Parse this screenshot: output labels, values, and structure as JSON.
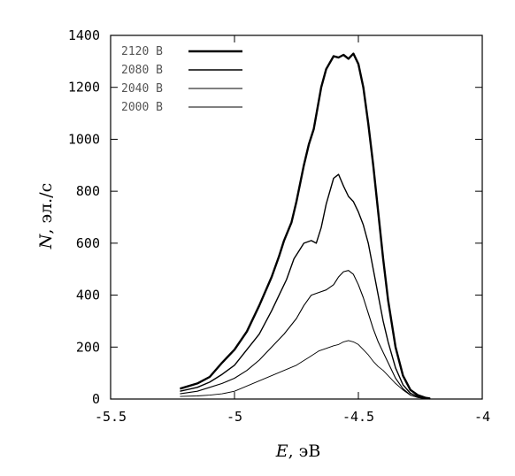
{
  "chart_data": {
    "type": "line",
    "xlabel_var": "E",
    "xlabel_unit": ", эВ",
    "ylabel_var": "N",
    "ylabel_unit": ", эл./с",
    "xlim": [
      -5.5,
      -4
    ],
    "ylim": [
      0,
      1400
    ],
    "xticks": [
      -5.5,
      -5,
      -4.5,
      -4
    ],
    "xtick_labels": [
      "-5.5",
      "-5",
      "-4.5",
      "-4"
    ],
    "yticks": [
      0,
      200,
      400,
      600,
      800,
      1000,
      1200,
      1400
    ],
    "ytick_labels": [
      "0",
      "200",
      "400",
      "600",
      "800",
      "1000",
      "1200",
      "1400"
    ],
    "grid": false,
    "legend_position": "top-left",
    "series": [
      {
        "name": "2120 В",
        "stroke_width": 2.4,
        "x": [
          -5.22,
          -5.15,
          -5.1,
          -5.05,
          -5.0,
          -4.95,
          -4.9,
          -4.85,
          -4.82,
          -4.8,
          -4.77,
          -4.75,
          -4.72,
          -4.7,
          -4.68,
          -4.65,
          -4.63,
          -4.6,
          -4.58,
          -4.56,
          -4.54,
          -4.52,
          -4.5,
          -4.48,
          -4.46,
          -4.44,
          -4.42,
          -4.4,
          -4.38,
          -4.35,
          -4.32,
          -4.29,
          -4.26,
          -4.23,
          -4.21
        ],
        "y": [
          40,
          60,
          85,
          140,
          190,
          260,
          360,
          470,
          550,
          610,
          680,
          760,
          900,
          980,
          1040,
          1200,
          1270,
          1320,
          1315,
          1325,
          1310,
          1330,
          1290,
          1200,
          1060,
          900,
          720,
          540,
          380,
          200,
          90,
          35,
          15,
          5,
          2
        ]
      },
      {
        "name": "2080 В",
        "stroke_width": 1.4,
        "x": [
          -5.22,
          -5.15,
          -5.1,
          -5.05,
          -5.0,
          -4.95,
          -4.9,
          -4.85,
          -4.82,
          -4.79,
          -4.76,
          -4.74,
          -4.72,
          -4.69,
          -4.67,
          -4.65,
          -4.63,
          -4.6,
          -4.58,
          -4.56,
          -4.54,
          -4.52,
          -4.5,
          -4.48,
          -4.46,
          -4.44,
          -4.42,
          -4.4,
          -4.38,
          -4.35,
          -4.32,
          -4.29,
          -4.26,
          -4.23,
          -4.21
        ],
        "y": [
          30,
          45,
          65,
          95,
          130,
          190,
          250,
          340,
          400,
          460,
          540,
          570,
          600,
          610,
          600,
          660,
          750,
          850,
          865,
          820,
          780,
          760,
          720,
          670,
          600,
          500,
          400,
          300,
          220,
          120,
          55,
          22,
          10,
          4,
          1
        ]
      },
      {
        "name": "2040 В",
        "stroke_width": 1.1,
        "x": [
          -5.22,
          -5.15,
          -5.1,
          -5.05,
          -5.0,
          -4.95,
          -4.9,
          -4.85,
          -4.8,
          -4.75,
          -4.72,
          -4.69,
          -4.66,
          -4.63,
          -4.6,
          -4.58,
          -4.56,
          -4.54,
          -4.52,
          -4.5,
          -4.48,
          -4.46,
          -4.44,
          -4.42,
          -4.4,
          -4.38,
          -4.35,
          -4.32,
          -4.29,
          -4.26,
          -4.23,
          -4.21
        ],
        "y": [
          20,
          30,
          45,
          60,
          80,
          110,
          150,
          200,
          250,
          310,
          360,
          400,
          410,
          420,
          440,
          470,
          490,
          495,
          480,
          440,
          390,
          330,
          270,
          220,
          180,
          140,
          80,
          40,
          15,
          6,
          2,
          1
        ]
      },
      {
        "name": "2000 В",
        "stroke_width": 0.9,
        "x": [
          -5.22,
          -5.15,
          -5.1,
          -5.05,
          -5.0,
          -4.95,
          -4.9,
          -4.85,
          -4.8,
          -4.75,
          -4.7,
          -4.66,
          -4.63,
          -4.6,
          -4.58,
          -4.56,
          -4.54,
          -4.52,
          -4.5,
          -4.48,
          -4.46,
          -4.44,
          -4.42,
          -4.4,
          -4.38,
          -4.35,
          -4.32,
          -4.29,
          -4.26,
          -4.23,
          -4.21
        ],
        "y": [
          10,
          12,
          15,
          20,
          30,
          50,
          70,
          90,
          110,
          130,
          160,
          185,
          195,
          205,
          210,
          220,
          225,
          220,
          210,
          190,
          170,
          145,
          125,
          110,
          90,
          60,
          35,
          15,
          6,
          2,
          1
        ]
      }
    ]
  }
}
